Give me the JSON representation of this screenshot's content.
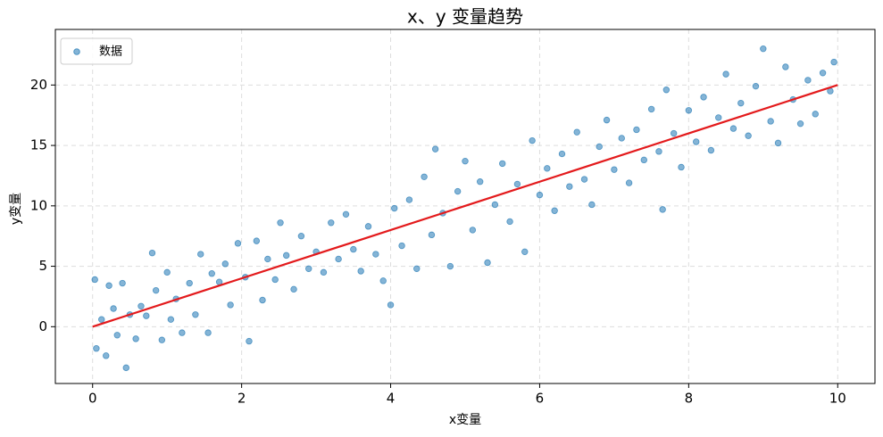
{
  "chart_data": {
    "type": "scatter",
    "title": "x、y 变量趋势",
    "x_label": "x变量",
    "y_label": "y变量",
    "xlim": [
      -0.5,
      10.5
    ],
    "ylim": [
      -4.7,
      24.6
    ],
    "xticks": [
      0,
      2,
      4,
      6,
      8,
      10
    ],
    "yticks": [
      0,
      5,
      10,
      15,
      20
    ],
    "grid": true,
    "legend": "upper left",
    "series": [
      {
        "name": "数据",
        "color": "#1f77b4",
        "x": [
          0.03,
          0.05,
          0.12,
          0.18,
          0.22,
          0.28,
          0.33,
          0.4,
          0.45,
          0.5,
          0.58,
          0.65,
          0.72,
          0.8,
          0.85,
          0.93,
          1.0,
          1.05,
          1.12,
          1.2,
          1.3,
          1.38,
          1.45,
          1.55,
          1.6,
          1.7,
          1.78,
          1.85,
          1.95,
          2.05,
          2.1,
          2.2,
          2.28,
          2.35,
          2.45,
          2.52,
          2.6,
          2.7,
          2.8,
          2.9,
          3.0,
          3.1,
          3.2,
          3.3,
          3.4,
          3.5,
          3.6,
          3.7,
          3.8,
          3.9,
          4.0,
          4.05,
          4.15,
          4.25,
          4.35,
          4.45,
          4.55,
          4.6,
          4.7,
          4.8,
          4.9,
          5.0,
          5.1,
          5.2,
          5.3,
          5.4,
          5.5,
          5.6,
          5.7,
          5.8,
          5.9,
          6.0,
          6.1,
          6.2,
          6.3,
          6.4,
          6.5,
          6.6,
          6.7,
          6.8,
          6.9,
          7.0,
          7.1,
          7.2,
          7.3,
          7.4,
          7.5,
          7.6,
          7.65,
          7.7,
          7.8,
          7.9,
          8.0,
          8.1,
          8.2,
          8.3,
          8.4,
          8.5,
          8.6,
          8.7,
          8.8,
          8.9,
          9.0,
          9.1,
          9.2,
          9.3,
          9.4,
          9.5,
          9.6,
          9.7,
          9.8,
          9.9,
          9.95
        ],
        "values": [
          3.9,
          -1.8,
          0.6,
          -2.4,
          3.4,
          1.5,
          -0.7,
          3.6,
          -3.4,
          1.0,
          -1.0,
          1.7,
          0.9,
          6.1,
          3.0,
          -1.1,
          4.5,
          0.6,
          2.3,
          -0.5,
          3.6,
          1.0,
          6.0,
          -0.5,
          4.4,
          3.7,
          5.2,
          1.8,
          6.9,
          4.1,
          -1.2,
          7.1,
          2.2,
          5.6,
          3.9,
          8.6,
          5.9,
          3.1,
          7.5,
          4.8,
          6.2,
          4.5,
          8.6,
          5.6,
          9.3,
          6.4,
          4.6,
          8.3,
          6.0,
          3.8,
          1.8,
          9.8,
          6.7,
          10.5,
          4.8,
          12.4,
          7.6,
          14.7,
          9.4,
          5.0,
          11.2,
          13.7,
          8.0,
          12.0,
          5.3,
          10.1,
          13.5,
          8.7,
          11.8,
          6.2,
          15.4,
          10.9,
          13.1,
          9.6,
          14.3,
          11.6,
          16.1,
          12.2,
          10.1,
          14.9,
          17.1,
          13.0,
          15.6,
          11.9,
          16.3,
          13.8,
          18.0,
          14.5,
          9.7,
          19.6,
          16.0,
          13.2,
          17.9,
          15.3,
          19.0,
          14.6,
          17.3,
          20.9,
          16.4,
          18.5,
          15.8,
          19.9,
          23.0,
          17.0,
          15.2,
          21.5,
          18.8,
          16.8,
          20.4,
          17.6,
          21.0,
          19.5,
          21.9
        ]
      }
    ],
    "trend_line": {
      "color": "#e31a1c",
      "x": [
        0,
        10
      ],
      "values": [
        0,
        20
      ]
    }
  }
}
